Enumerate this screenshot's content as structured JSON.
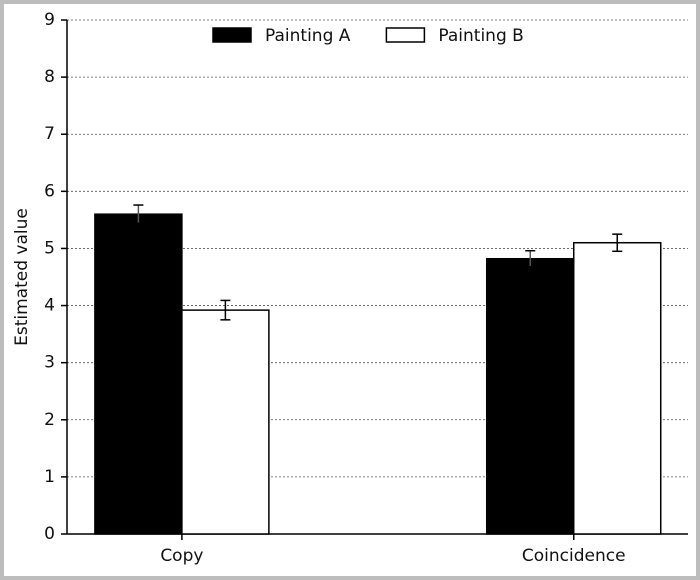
{
  "chart_data": {
    "type": "bar",
    "y_label": "Estimated value",
    "categories": [
      "Copy",
      "Coincidence"
    ],
    "series": [
      {
        "name": "Painting A",
        "color": "#000000",
        "values": [
          5.6,
          4.82
        ],
        "errors": [
          0.16,
          0.14
        ]
      },
      {
        "name": "Painting B",
        "color": "#ffffff",
        "values": [
          3.92,
          5.1
        ],
        "errors": [
          0.17,
          0.15
        ]
      }
    ],
    "ylim": [
      0,
      9
    ],
    "yticks": [
      0,
      1,
      2,
      3,
      4,
      5,
      6,
      7,
      8,
      9
    ],
    "grid": true,
    "legend": "top"
  }
}
